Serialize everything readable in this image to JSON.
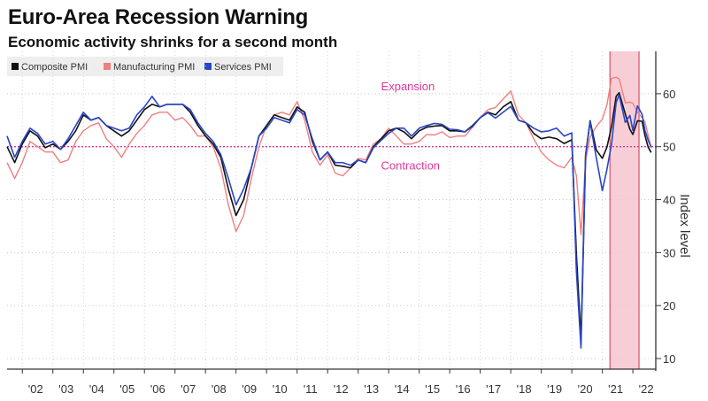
{
  "title": "Euro-Area Recession Warning",
  "subtitle": "Economic activity shrinks for a second month",
  "chart_data": {
    "type": "line",
    "title": "Euro-Area Recession Warning",
    "subtitle": "Economic activity shrinks for a second month",
    "xlabel": "",
    "ylabel": "Index level",
    "ylim": [
      8,
      68
    ],
    "xlim": [
      2001.5,
      2022.75
    ],
    "yticks": [
      10,
      20,
      30,
      40,
      50,
      60
    ],
    "xticks": [
      {
        "year": 2002,
        "label": "'02"
      },
      {
        "year": 2003,
        "label": "'03"
      },
      {
        "year": 2004,
        "label": "'04"
      },
      {
        "year": 2005,
        "label": "'05"
      },
      {
        "year": 2006,
        "label": "'06"
      },
      {
        "year": 2007,
        "label": "'07"
      },
      {
        "year": 2008,
        "label": "'08"
      },
      {
        "year": 2009,
        "label": "'09"
      },
      {
        "year": 2010,
        "label": "'10"
      },
      {
        "year": 2011,
        "label": "'11"
      },
      {
        "year": 2012,
        "label": "'12"
      },
      {
        "year": 2013,
        "label": "'13"
      },
      {
        "year": 2014,
        "label": "'14"
      },
      {
        "year": 2015,
        "label": "'15"
      },
      {
        "year": 2016,
        "label": "'16"
      },
      {
        "year": 2017,
        "label": "'17"
      },
      {
        "year": 2018,
        "label": "'18"
      },
      {
        "year": 2019,
        "label": "'19"
      },
      {
        "year": 2020,
        "label": "'20"
      },
      {
        "year": 2021,
        "label": "'21"
      },
      {
        "year": 2022,
        "label": "'22"
      }
    ],
    "grid": true,
    "legend_position": "top-left",
    "reference_line": {
      "value": 50,
      "color": "#e0389a"
    },
    "annotations": [
      {
        "text": "Expansion",
        "x": 2013.75,
        "y": 61.5
      },
      {
        "text": "Contraction",
        "x": 2013.75,
        "y": 46.5
      }
    ],
    "shaded_region": {
      "from": 2021.25,
      "to": 2022.2,
      "color": "#f7c6cf",
      "edge_color": "#e06b80"
    },
    "series": [
      {
        "name": "Composite PMI",
        "color": "#111111",
        "points": [
          [
            2001.5,
            50
          ],
          [
            2001.75,
            47
          ],
          [
            2002.0,
            50.5
          ],
          [
            2002.25,
            53
          ],
          [
            2002.5,
            52
          ],
          [
            2002.75,
            49.8
          ],
          [
            2003.0,
            50.5
          ],
          [
            2003.25,
            49.5
          ],
          [
            2003.5,
            51
          ],
          [
            2003.75,
            53
          ],
          [
            2004.0,
            56
          ],
          [
            2004.25,
            55
          ],
          [
            2004.5,
            55.5
          ],
          [
            2004.75,
            54
          ],
          [
            2005.0,
            53
          ],
          [
            2005.25,
            52
          ],
          [
            2005.5,
            53
          ],
          [
            2005.75,
            55
          ],
          [
            2006.0,
            57
          ],
          [
            2006.25,
            58
          ],
          [
            2006.5,
            57.5
          ],
          [
            2006.75,
            58
          ],
          [
            2007.0,
            58
          ],
          [
            2007.25,
            58
          ],
          [
            2007.5,
            56.5
          ],
          [
            2007.75,
            54
          ],
          [
            2008.0,
            52
          ],
          [
            2008.25,
            50.5
          ],
          [
            2008.5,
            48
          ],
          [
            2008.75,
            42
          ],
          [
            2009.0,
            37
          ],
          [
            2009.25,
            40
          ],
          [
            2009.5,
            46
          ],
          [
            2009.75,
            52
          ],
          [
            2010.0,
            54
          ],
          [
            2010.25,
            56
          ],
          [
            2010.5,
            55.5
          ],
          [
            2010.75,
            55
          ],
          [
            2011.0,
            57.5
          ],
          [
            2011.25,
            56.5
          ],
          [
            2011.5,
            51
          ],
          [
            2011.75,
            47.5
          ],
          [
            2012.0,
            49
          ],
          [
            2012.25,
            46.5
          ],
          [
            2012.5,
            46.3
          ],
          [
            2012.75,
            46
          ],
          [
            2013.0,
            47.5
          ],
          [
            2013.25,
            47
          ],
          [
            2013.5,
            50
          ],
          [
            2013.75,
            51.5
          ],
          [
            2014.0,
            53
          ],
          [
            2014.25,
            53.5
          ],
          [
            2014.5,
            52.8
          ],
          [
            2014.75,
            51.5
          ],
          [
            2015.0,
            53
          ],
          [
            2015.25,
            53.7
          ],
          [
            2015.5,
            53.9
          ],
          [
            2015.75,
            54
          ],
          [
            2016.0,
            53
          ],
          [
            2016.25,
            53
          ],
          [
            2016.5,
            52.8
          ],
          [
            2016.75,
            54
          ],
          [
            2017.0,
            55.5
          ],
          [
            2017.25,
            56.5
          ],
          [
            2017.5,
            56
          ],
          [
            2017.75,
            57.5
          ],
          [
            2018.0,
            58.5
          ],
          [
            2018.25,
            55
          ],
          [
            2018.5,
            54.5
          ],
          [
            2018.75,
            52.5
          ],
          [
            2019.0,
            51.5
          ],
          [
            2019.25,
            51.8
          ],
          [
            2019.5,
            51.5
          ],
          [
            2019.75,
            50.6
          ],
          [
            2020.0,
            51.3
          ],
          [
            2020.15,
            29.7
          ],
          [
            2020.3,
            13.6
          ],
          [
            2020.45,
            48.5
          ],
          [
            2020.6,
            54.9
          ],
          [
            2020.8,
            49.4
          ],
          [
            2021.0,
            47.8
          ],
          [
            2021.15,
            49.9
          ],
          [
            2021.3,
            53.8
          ],
          [
            2021.45,
            59.5
          ],
          [
            2021.55,
            60.2
          ],
          [
            2021.75,
            56.2
          ],
          [
            2021.9,
            53.3
          ],
          [
            2022.0,
            52.3
          ],
          [
            2022.15,
            54.9
          ],
          [
            2022.3,
            54.8
          ],
          [
            2022.4,
            52
          ],
          [
            2022.5,
            49.9
          ],
          [
            2022.6,
            48.9
          ]
        ]
      },
      {
        "name": "Manufacturing PMI",
        "color": "#f07f7f",
        "points": [
          [
            2001.5,
            47
          ],
          [
            2001.75,
            44
          ],
          [
            2002.0,
            47
          ],
          [
            2002.25,
            51
          ],
          [
            2002.5,
            50
          ],
          [
            2002.75,
            49
          ],
          [
            2003.0,
            49
          ],
          [
            2003.25,
            47
          ],
          [
            2003.5,
            47.5
          ],
          [
            2003.75,
            51
          ],
          [
            2004.0,
            53
          ],
          [
            2004.25,
            54
          ],
          [
            2004.5,
            54.5
          ],
          [
            2004.75,
            51.5
          ],
          [
            2005.0,
            50
          ],
          [
            2005.25,
            48
          ],
          [
            2005.5,
            50.5
          ],
          [
            2005.75,
            52.5
          ],
          [
            2006.0,
            54
          ],
          [
            2006.25,
            56
          ],
          [
            2006.5,
            56.5
          ],
          [
            2006.75,
            56.5
          ],
          [
            2007.0,
            55
          ],
          [
            2007.25,
            55.5
          ],
          [
            2007.5,
            54
          ],
          [
            2007.75,
            52
          ],
          [
            2008.0,
            52
          ],
          [
            2008.25,
            50
          ],
          [
            2008.5,
            46
          ],
          [
            2008.75,
            39
          ],
          [
            2009.0,
            34
          ],
          [
            2009.25,
            37
          ],
          [
            2009.5,
            44
          ],
          [
            2009.75,
            50
          ],
          [
            2010.0,
            54
          ],
          [
            2010.25,
            56
          ],
          [
            2010.5,
            56.5
          ],
          [
            2010.75,
            56
          ],
          [
            2011.0,
            58.5
          ],
          [
            2011.25,
            55
          ],
          [
            2011.5,
            49
          ],
          [
            2011.75,
            46.5
          ],
          [
            2012.0,
            48.5
          ],
          [
            2012.25,
            45
          ],
          [
            2012.5,
            44.5
          ],
          [
            2012.75,
            46
          ],
          [
            2013.0,
            47.8
          ],
          [
            2013.25,
            47.5
          ],
          [
            2013.5,
            50.5
          ],
          [
            2013.75,
            51.5
          ],
          [
            2014.0,
            53.5
          ],
          [
            2014.25,
            52
          ],
          [
            2014.5,
            50.5
          ],
          [
            2014.75,
            50.5
          ],
          [
            2015.0,
            51
          ],
          [
            2015.25,
            52.3
          ],
          [
            2015.5,
            52.2
          ],
          [
            2015.75,
            52.8
          ],
          [
            2016.0,
            51.7
          ],
          [
            2016.25,
            52
          ],
          [
            2016.5,
            52
          ],
          [
            2016.75,
            53.7
          ],
          [
            2017.0,
            55.5
          ],
          [
            2017.25,
            57
          ],
          [
            2017.5,
            57.4
          ],
          [
            2017.75,
            59
          ],
          [
            2018.0,
            60.5
          ],
          [
            2018.25,
            56
          ],
          [
            2018.5,
            54.5
          ],
          [
            2018.75,
            51.5
          ],
          [
            2019.0,
            49
          ],
          [
            2019.25,
            47.5
          ],
          [
            2019.5,
            46.5
          ],
          [
            2019.75,
            46
          ],
          [
            2020.0,
            48
          ],
          [
            2020.15,
            44.5
          ],
          [
            2020.3,
            33.4
          ],
          [
            2020.45,
            47.4
          ],
          [
            2020.6,
            51.8
          ],
          [
            2020.8,
            53.8
          ],
          [
            2021.0,
            55.2
          ],
          [
            2021.15,
            57.9
          ],
          [
            2021.3,
            62.9
          ],
          [
            2021.45,
            63.1
          ],
          [
            2021.55,
            62.8
          ],
          [
            2021.75,
            58.3
          ],
          [
            2021.9,
            58.4
          ],
          [
            2022.0,
            58.2
          ],
          [
            2022.15,
            56.5
          ],
          [
            2022.3,
            55.5
          ],
          [
            2022.4,
            54.6
          ],
          [
            2022.5,
            52.1
          ],
          [
            2022.6,
            49.8
          ]
        ]
      },
      {
        "name": "Services PMI",
        "color": "#2846c8",
        "points": [
          [
            2001.5,
            52
          ],
          [
            2001.75,
            48
          ],
          [
            2002.0,
            51
          ],
          [
            2002.25,
            53.5
          ],
          [
            2002.5,
            52.5
          ],
          [
            2002.75,
            50.5
          ],
          [
            2003.0,
            51
          ],
          [
            2003.25,
            49.5
          ],
          [
            2003.5,
            51.5
          ],
          [
            2003.75,
            54
          ],
          [
            2004.0,
            56.5
          ],
          [
            2004.25,
            55
          ],
          [
            2004.5,
            55.5
          ],
          [
            2004.75,
            54
          ],
          [
            2005.0,
            53.5
          ],
          [
            2005.25,
            53
          ],
          [
            2005.5,
            53.5
          ],
          [
            2005.75,
            56
          ],
          [
            2006.0,
            57.5
          ],
          [
            2006.25,
            59.5
          ],
          [
            2006.5,
            57.5
          ],
          [
            2006.75,
            58
          ],
          [
            2007.0,
            58
          ],
          [
            2007.25,
            58
          ],
          [
            2007.5,
            57
          ],
          [
            2007.75,
            54.5
          ],
          [
            2008.0,
            52.5
          ],
          [
            2008.25,
            51
          ],
          [
            2008.5,
            48.5
          ],
          [
            2008.75,
            44
          ],
          [
            2009.0,
            39
          ],
          [
            2009.25,
            42
          ],
          [
            2009.5,
            46
          ],
          [
            2009.75,
            52
          ],
          [
            2010.0,
            53.5
          ],
          [
            2010.25,
            55.5
          ],
          [
            2010.5,
            55
          ],
          [
            2010.75,
            54.5
          ],
          [
            2011.0,
            57
          ],
          [
            2011.25,
            56
          ],
          [
            2011.5,
            51.5
          ],
          [
            2011.75,
            47.5
          ],
          [
            2012.0,
            49
          ],
          [
            2012.25,
            47
          ],
          [
            2012.5,
            47
          ],
          [
            2012.75,
            46.5
          ],
          [
            2013.0,
            47.5
          ],
          [
            2013.25,
            47
          ],
          [
            2013.5,
            49.8
          ],
          [
            2013.75,
            51.2
          ],
          [
            2014.0,
            52.5
          ],
          [
            2014.25,
            53.5
          ],
          [
            2014.5,
            53.5
          ],
          [
            2014.75,
            52
          ],
          [
            2015.0,
            53.5
          ],
          [
            2015.25,
            54
          ],
          [
            2015.5,
            54.4
          ],
          [
            2015.75,
            54.2
          ],
          [
            2016.0,
            53.3
          ],
          [
            2016.25,
            53.2
          ],
          [
            2016.5,
            52.8
          ],
          [
            2016.75,
            53.8
          ],
          [
            2017.0,
            55.5
          ],
          [
            2017.25,
            56.4
          ],
          [
            2017.5,
            55.4
          ],
          [
            2017.75,
            56.5
          ],
          [
            2018.0,
            57.6
          ],
          [
            2018.25,
            55
          ],
          [
            2018.5,
            54.5
          ],
          [
            2018.75,
            53.5
          ],
          [
            2019.0,
            52.8
          ],
          [
            2019.25,
            53
          ],
          [
            2019.5,
            53.5
          ],
          [
            2019.75,
            52
          ],
          [
            2020.0,
            52.6
          ],
          [
            2020.15,
            26.4
          ],
          [
            2020.3,
            12
          ],
          [
            2020.45,
            48.3
          ],
          [
            2020.6,
            54.7
          ],
          [
            2020.8,
            48
          ],
          [
            2021.0,
            41.7
          ],
          [
            2021.15,
            45.7
          ],
          [
            2021.3,
            50.5
          ],
          [
            2021.45,
            58.3
          ],
          [
            2021.55,
            59.8
          ],
          [
            2021.75,
            54.6
          ],
          [
            2021.9,
            55.9
          ],
          [
            2022.0,
            53.1
          ],
          [
            2022.15,
            57.7
          ],
          [
            2022.3,
            56.1
          ],
          [
            2022.4,
            53
          ],
          [
            2022.5,
            51.2
          ],
          [
            2022.6,
            49.9
          ]
        ]
      }
    ]
  }
}
